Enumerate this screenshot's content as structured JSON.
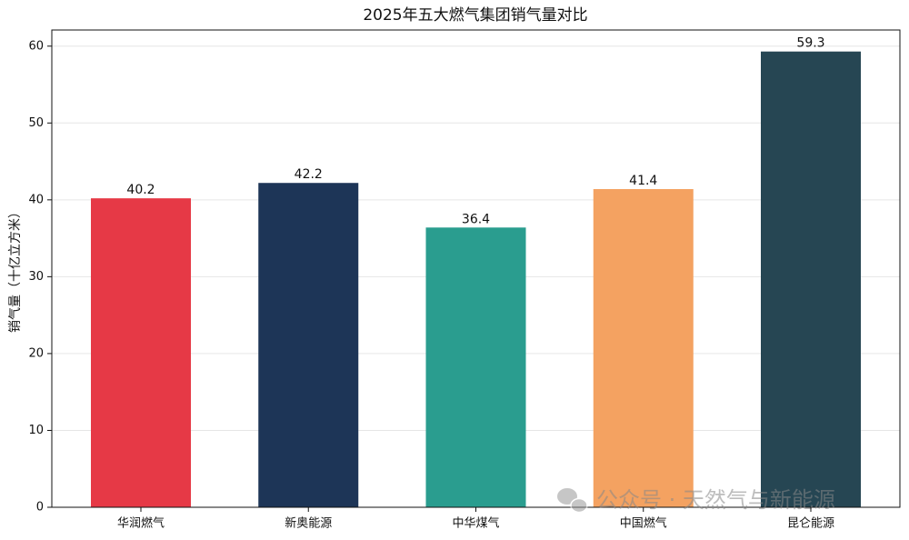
{
  "chart_data": {
    "type": "bar",
    "title": "2025年五大燃气集团销气量对比",
    "y_label": "销气量（十亿立方米）",
    "categories": [
      "华润燃气",
      "新奥能源",
      "中华煤气",
      "中国燃气",
      "昆仑能源"
    ],
    "values": [
      40.2,
      42.2,
      36.4,
      41.4,
      59.3
    ],
    "colors": [
      "#e63946",
      "#1d3557",
      "#2a9d8f",
      "#f4a261",
      "#264653"
    ],
    "ylim": [
      0,
      62.1
    ],
    "yticks": [
      0,
      10,
      20,
      30,
      40,
      50,
      60
    ],
    "grid": true,
    "watermark": "公众号 · 天然气与新能源"
  }
}
